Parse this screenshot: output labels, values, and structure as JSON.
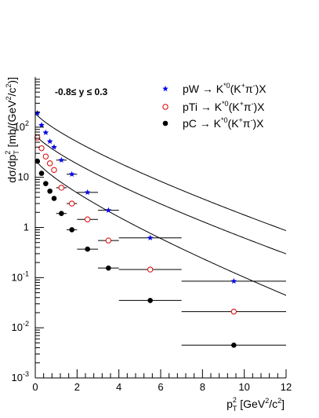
{
  "chart_data": {
    "type": "scatter",
    "xlabel": "p_T^2 [GeV^2/c^2]",
    "ylabel": "dσ/dp_T^2 [mb/(GeV^2/c^2)]",
    "xlim": [
      0,
      12
    ],
    "ylim": [
      0.001,
      1000
    ],
    "yscale": "log",
    "x_ticks": [
      0,
      2,
      4,
      6,
      8,
      10,
      12
    ],
    "y_ticks": [
      0.001,
      0.01,
      0.1,
      1,
      10,
      100
    ],
    "x_tick_labels": [
      "0",
      "2",
      "4",
      "6",
      "8",
      "10",
      "12"
    ],
    "y_tick_labels": [
      {
        "base": "10",
        "exp": "-3"
      },
      {
        "base": "10",
        "exp": "-2"
      },
      {
        "base": "10",
        "exp": "-1"
      },
      {
        "base": "1",
        "exp": ""
      },
      {
        "base": "10",
        "exp": ""
      },
      {
        "base": "10",
        "exp": "2"
      }
    ],
    "grid": false,
    "legend_position": "top-right",
    "annotation": "-0.8≤ y ≤ 0.3",
    "series": [
      {
        "name": "pW → K*0(K+π-)X",
        "marker": "star",
        "color": "#0000ee",
        "fit": {
          "A": 195,
          "B": 0.78
        },
        "points": [
          {
            "x": 0.1,
            "y": 190,
            "xerr": 0.1
          },
          {
            "x": 0.3,
            "y": 110,
            "xerr": 0.1
          },
          {
            "x": 0.5,
            "y": 78,
            "xerr": 0.1
          },
          {
            "x": 0.7,
            "y": 52,
            "xerr": 0.1
          },
          {
            "x": 0.9,
            "y": 40,
            "xerr": 0.1
          },
          {
            "x": 1.25,
            "y": 22,
            "xerr": 0.25
          },
          {
            "x": 1.75,
            "y": 11.5,
            "xerr": 0.25
          },
          {
            "x": 2.5,
            "y": 5.0,
            "xerr": 0.5
          },
          {
            "x": 3.5,
            "y": 2.2,
            "xerr": 0.5
          },
          {
            "x": 5.5,
            "y": 0.62,
            "xerr": 1.5
          },
          {
            "x": 9.5,
            "y": 0.085,
            "xerr": 2.5
          }
        ]
      },
      {
        "name": "pTi → K*0(K+π-)X",
        "marker": "open-circle",
        "color": "#dd0000",
        "fit": {
          "A": 72,
          "B": 0.79
        },
        "points": [
          {
            "x": 0.1,
            "y": 62,
            "xerr": 0.1
          },
          {
            "x": 0.3,
            "y": 38,
            "xerr": 0.1
          },
          {
            "x": 0.5,
            "y": 26,
            "xerr": 0.1
          },
          {
            "x": 0.7,
            "y": 19,
            "xerr": 0.1
          },
          {
            "x": 0.9,
            "y": 14,
            "xerr": 0.1
          },
          {
            "x": 1.25,
            "y": 6.2,
            "xerr": 0.25
          },
          {
            "x": 1.75,
            "y": 3.0,
            "xerr": 0.25
          },
          {
            "x": 2.5,
            "y": 1.45,
            "xerr": 0.5
          },
          {
            "x": 3.5,
            "y": 0.55,
            "xerr": 0.5
          },
          {
            "x": 5.5,
            "y": 0.145,
            "xerr": 1.5
          },
          {
            "x": 9.5,
            "y": 0.021,
            "xerr": 2.5
          }
        ]
      },
      {
        "name": "pC → K*0(K+π-)X",
        "marker": "filled-circle",
        "color": "#000000",
        "fit": {
          "A": 23,
          "B": 0.9
        },
        "points": [
          {
            "x": 0.1,
            "y": 21,
            "xerr": 0.1
          },
          {
            "x": 0.3,
            "y": 12,
            "xerr": 0.1
          },
          {
            "x": 0.5,
            "y": 7.5,
            "xerr": 0.1
          },
          {
            "x": 0.7,
            "y": 5.3,
            "xerr": 0.1
          },
          {
            "x": 0.9,
            "y": 3.8,
            "xerr": 0.1
          },
          {
            "x": 1.25,
            "y": 1.9,
            "xerr": 0.25
          },
          {
            "x": 1.75,
            "y": 0.9,
            "xerr": 0.25
          },
          {
            "x": 2.5,
            "y": 0.37,
            "xerr": 0.5
          },
          {
            "x": 3.5,
            "y": 0.155,
            "xerr": 0.5
          },
          {
            "x": 5.5,
            "y": 0.035,
            "xerr": 1.5
          },
          {
            "x": 9.5,
            "y": 0.0045,
            "xerr": 2.5
          }
        ]
      }
    ]
  }
}
